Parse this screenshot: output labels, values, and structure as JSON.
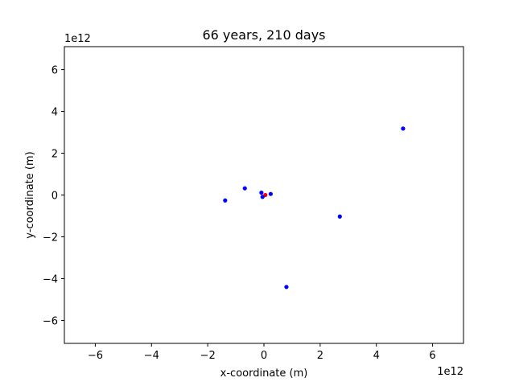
{
  "chart_data": {
    "type": "scatter",
    "title": "66 years, 210 days",
    "xlabel": "x-coordinate (m)",
    "ylabel": "y-coordinate (m)",
    "x_offset_label": "1e12",
    "y_offset_label": "1e12",
    "xlim": [
      -7.1,
      7.1
    ],
    "ylim": [
      -7.1,
      7.1
    ],
    "xticks": [
      -6,
      -4,
      -2,
      0,
      2,
      4,
      6
    ],
    "yticks": [
      -6,
      -4,
      -2,
      0,
      2,
      4,
      6
    ],
    "xtick_labels": [
      "−6",
      "−4",
      "−2",
      "0",
      "2",
      "4",
      "6"
    ],
    "ytick_labels": [
      "−6",
      "−4",
      "−2",
      "0",
      "2",
      "4",
      "6"
    ],
    "grid": false,
    "units_note": "values in units of 1e12 m",
    "series": [
      {
        "color": "#ff0000",
        "points": [
          [
            0.05,
            0.0
          ]
        ]
      },
      {
        "color": "#0000ff",
        "points": [
          [
            -0.09,
            0.11
          ],
          [
            -0.05,
            -0.09
          ],
          [
            0.24,
            0.05
          ],
          [
            -0.68,
            0.32
          ],
          [
            -1.38,
            -0.26
          ],
          [
            2.7,
            -1.03
          ],
          [
            0.8,
            -4.4
          ],
          [
            4.95,
            3.18
          ]
        ]
      }
    ]
  }
}
